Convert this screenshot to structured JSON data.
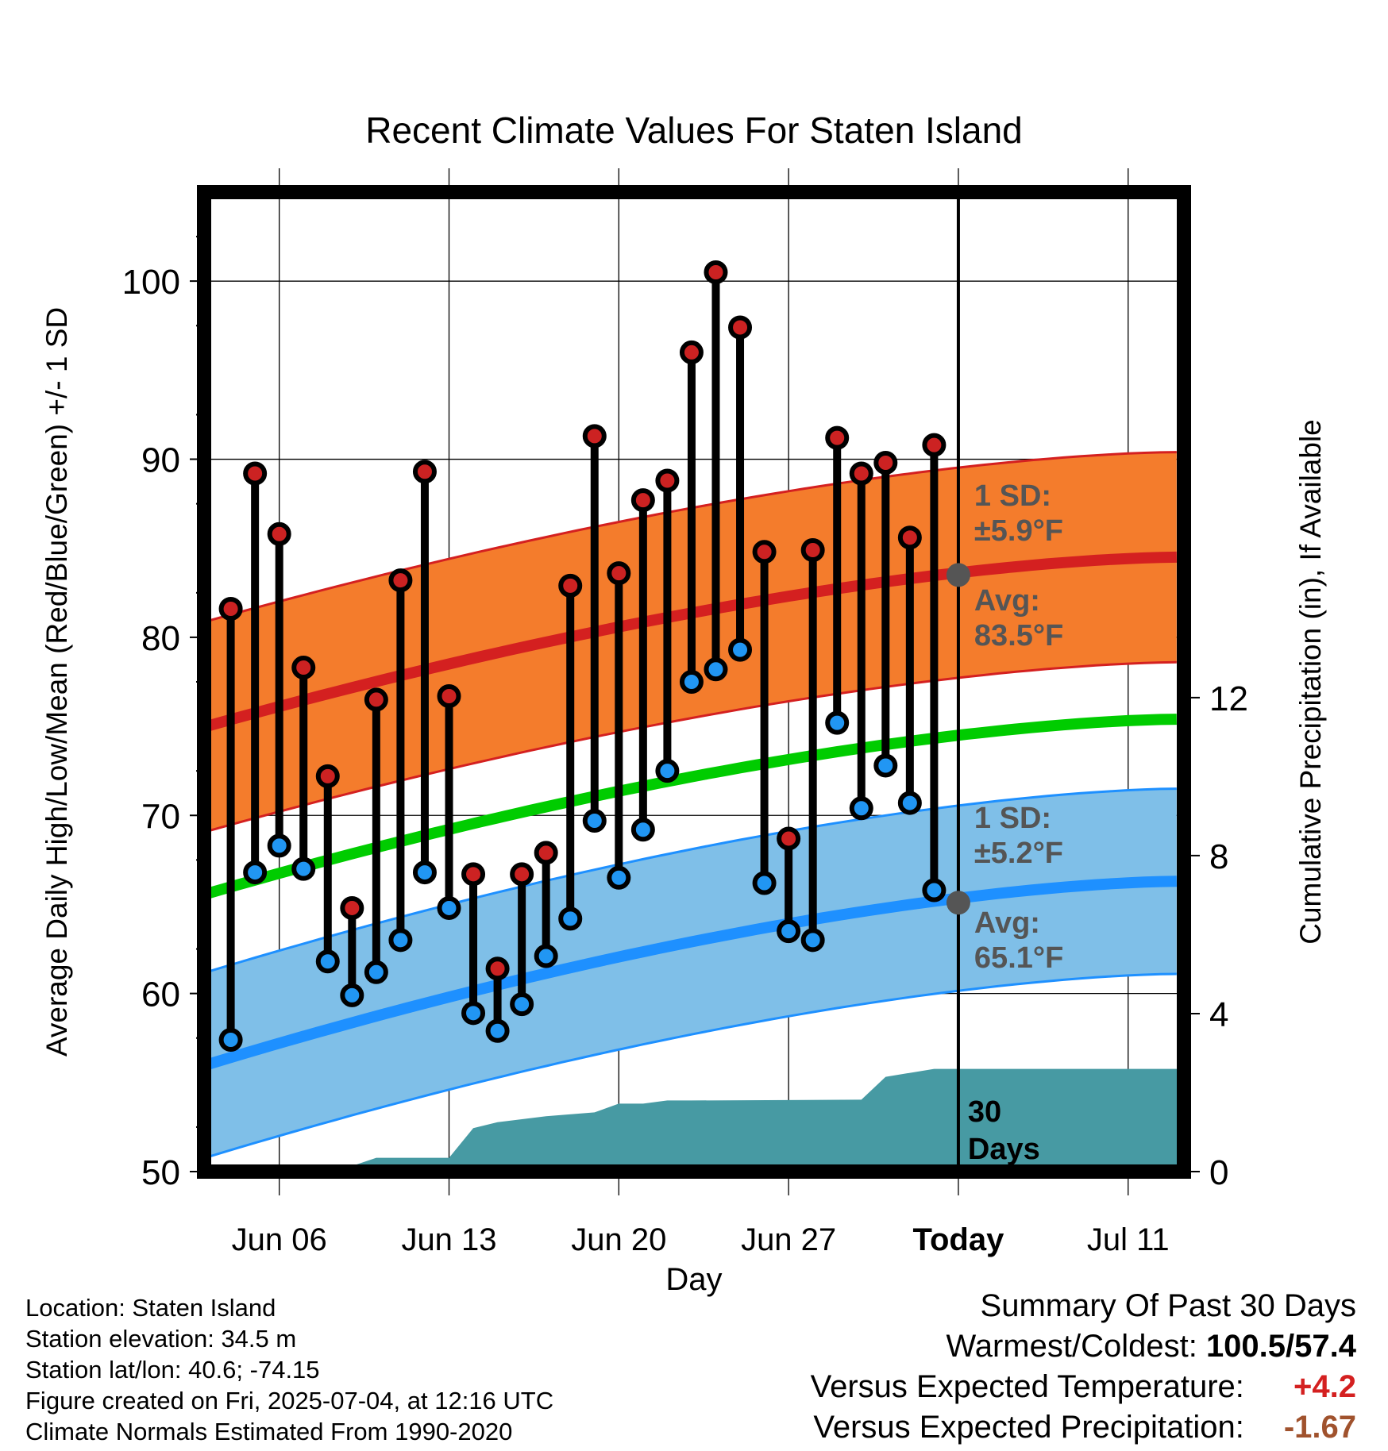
{
  "chart_data": {
    "type": "line",
    "title": "Recent Climate Values For Staten Island",
    "xlabel": "Day",
    "ylabel": "Average Daily High/Low/Mean (Red/Blue/Green) +/- 1 SD",
    "y2label": "Cumulative Precipitation (in), If Available",
    "ylim": [
      50,
      105
    ],
    "y_ticks": [
      "50",
      "60",
      "70",
      "80",
      "90",
      "100"
    ],
    "y2_ticks": [
      "0",
      "4",
      "8",
      "12"
    ],
    "y2lim": [
      0,
      24.8
    ],
    "x_ticks": [
      "Jun 06",
      "Jun 13",
      "Jun 20",
      "Jun 27",
      "Today",
      "Jul 11"
    ],
    "x_tick_days": [
      6,
      13,
      20,
      27,
      34,
      41
    ],
    "xlim": [
      2.9,
      43.3
    ],
    "grid": true,
    "today_day": 34,
    "daily": {
      "days": [
        4,
        5,
        6,
        7,
        8,
        9,
        10,
        11,
        12,
        13,
        14,
        15,
        16,
        17,
        18,
        19,
        20,
        21,
        22,
        23,
        24,
        25,
        26,
        27,
        28,
        29,
        30,
        31,
        32,
        33
      ],
      "highs": [
        81.6,
        89.2,
        85.8,
        78.3,
        72.2,
        64.8,
        76.5,
        83.2,
        89.3,
        76.7,
        66.7,
        61.4,
        66.7,
        67.9,
        82.9,
        91.3,
        83.6,
        87.7,
        88.8,
        96.0,
        100.5,
        97.4,
        84.8,
        68.7,
        84.9,
        91.2,
        89.2,
        89.8,
        85.6,
        90.8
      ],
      "lows": [
        57.4,
        66.8,
        68.3,
        67.0,
        61.8,
        59.9,
        61.2,
        63.0,
        66.8,
        64.8,
        58.9,
        57.9,
        59.4,
        62.1,
        64.2,
        69.7,
        66.5,
        69.2,
        72.5,
        77.5,
        78.2,
        79.3,
        66.2,
        63.5,
        63.0,
        75.2,
        70.4,
        72.8,
        70.7,
        65.8
      ]
    },
    "normals": {
      "start_day": 3,
      "end_day": 43,
      "high_avg": [
        75.0,
        84.5
      ],
      "low_avg": [
        56.0,
        66.3
      ],
      "mean_avg": [
        65.6,
        75.4
      ],
      "high_sd": 5.9,
      "low_sd": 5.2
    },
    "precip_cumulative": [
      [
        3,
        0
      ],
      [
        6.8,
        0
      ],
      [
        7.8,
        0.1
      ],
      [
        8.8,
        0.1
      ],
      [
        10,
        0.35
      ],
      [
        13,
        0.35
      ],
      [
        14,
        1.1
      ],
      [
        15,
        1.25
      ],
      [
        17,
        1.4
      ],
      [
        19,
        1.5
      ],
      [
        20,
        1.72
      ],
      [
        21,
        1.72
      ],
      [
        22,
        1.8
      ],
      [
        23,
        1.8
      ],
      [
        30,
        1.82
      ],
      [
        31,
        2.4
      ],
      [
        33,
        2.6
      ],
      [
        43.3,
        2.6
      ]
    ],
    "annotations": {
      "high_sd_label": "1 SD:",
      "high_sd_value": "±5.9°F",
      "high_avg_label": "Avg:",
      "high_avg_value": "83.5°F",
      "low_sd_label": "1 SD:",
      "low_sd_value": "±5.2°F",
      "low_avg_label": "Avg:",
      "low_avg_value": "65.1°F",
      "precip_window_line1": "30",
      "precip_window_line2": "Days"
    },
    "today_high_avg": 83.5,
    "today_low_avg": 65.1
  },
  "info": {
    "location": "Location: Staten Island",
    "elevation": "Station elevation: 34.5 m",
    "latlon": "Station lat/lon: 40.6; -74.15",
    "created": "Figure created on Fri, 2025-07-04, at 12:16 UTC",
    "normals": "Climate Normals Estimated From 1990-2020"
  },
  "summary": {
    "title": "Summary Of Past 30 Days",
    "warm_cold_label": "Warmest/Coldest:",
    "warm_cold_value": "100.5/57.4",
    "temp_label": "Versus Expected Temperature:",
    "temp_value": "+4.2",
    "precip_label": "Versus Expected Precipitation:",
    "precip_value": "-1.67"
  },
  "colors": {
    "high_band": "#f47c2c",
    "high_line": "#d42020",
    "low_band": "#7fbfe8",
    "low_line": "#1e90ff",
    "mean_line": "#00cc00",
    "precip_fill": "#479aa3",
    "high_dot": "#cc2222",
    "low_dot": "#2196f3",
    "annotation_text": "#555555"
  }
}
